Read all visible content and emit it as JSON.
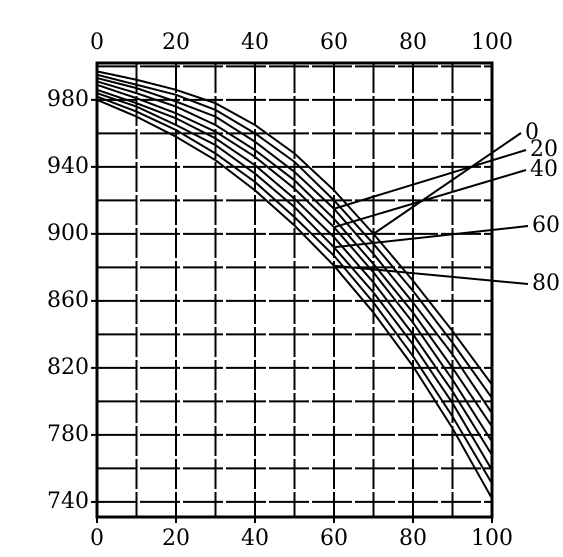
{
  "chart_data": {
    "type": "line",
    "x": [
      0,
      10,
      20,
      30,
      40,
      50,
      60,
      70,
      80,
      90,
      100
    ],
    "series": [
      {
        "name": "0",
        "color": "#000000",
        "values": [
          997,
          992,
          986,
          978,
          965,
          948,
          926,
          900,
          872,
          842,
          810
        ]
      },
      {
        "name": null,
        "color": "#000000",
        "values": [
          995,
          989,
          983,
          974,
          960,
          943,
          920,
          894,
          866,
          835,
          802
        ]
      },
      {
        "name": "20",
        "color": "#000000",
        "values": [
          993,
          987,
          979,
          970,
          955,
          937,
          915,
          888,
          859,
          828,
          793
        ]
      },
      {
        "name": null,
        "color": "#000000",
        "values": [
          991,
          984,
          976,
          965,
          950,
          932,
          909,
          882,
          853,
          820,
          785
        ]
      },
      {
        "name": "40",
        "color": "#000000",
        "values": [
          989,
          981,
          972,
          961,
          946,
          927,
          904,
          877,
          847,
          813,
          776
        ]
      },
      {
        "name": null,
        "color": "#000000",
        "values": [
          986,
          978,
          969,
          957,
          941,
          921,
          898,
          871,
          840,
          806,
          768
        ]
      },
      {
        "name": "60",
        "color": "#000000",
        "values": [
          984,
          976,
          965,
          953,
          936,
          916,
          892,
          865,
          834,
          799,
          759
        ]
      },
      {
        "name": null,
        "color": "#000000",
        "values": [
          982,
          973,
          962,
          948,
          931,
          910,
          887,
          859,
          827,
          791,
          751
        ]
      },
      {
        "name": "80",
        "color": "#000000",
        "values": [
          980,
          970,
          958,
          944,
          926,
          905,
          881,
          853,
          821,
          784,
          742
        ]
      }
    ],
    "xlim": [
      0,
      100
    ],
    "xticks": [
      0,
      20,
      40,
      60,
      80,
      100
    ],
    "ylim": [
      731,
      1002
    ],
    "yticks": [
      740,
      780,
      820,
      860,
      900,
      940,
      980
    ],
    "xgrid": [
      10,
      20,
      30,
      40,
      50,
      60,
      70,
      80,
      90
    ],
    "ygrid": [
      740,
      760,
      780,
      800,
      820,
      840,
      860,
      880,
      900,
      920,
      940,
      960,
      980,
      1000
    ],
    "grid": true
  }
}
